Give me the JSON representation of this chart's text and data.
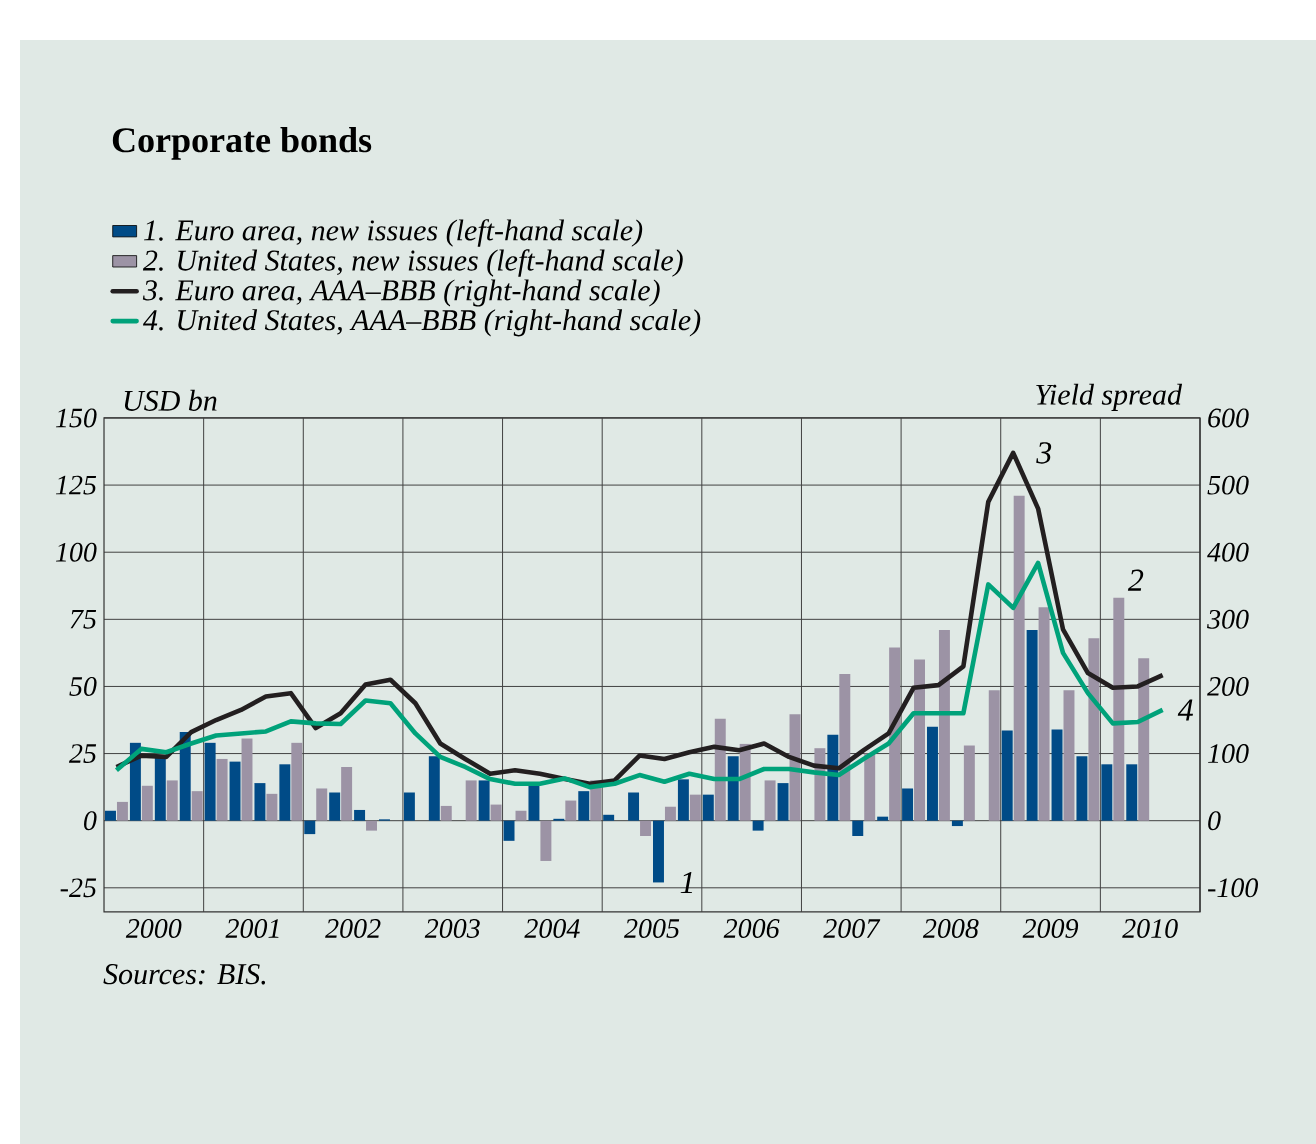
{
  "chart_data": {
    "type": "bar",
    "title": "Corporate bonds",
    "ylabel": "USD bn",
    "y2label": "Yield spread",
    "x": [
      2000.125,
      2000.375,
      2000.625,
      2000.875,
      2001.125,
      2001.375,
      2001.625,
      2001.875,
      2002.125,
      2002.375,
      2002.625,
      2002.875,
      2003.125,
      2003.375,
      2003.625,
      2003.875,
      2004.125,
      2004.375,
      2004.625,
      2004.875,
      2005.125,
      2005.375,
      2005.625,
      2005.875,
      2006.125,
      2006.375,
      2006.625,
      2006.875,
      2007.125,
      2007.375,
      2007.625,
      2007.875,
      2008.125,
      2008.375,
      2008.625,
      2008.875,
      2009.125,
      2009.375,
      2009.625,
      2009.875,
      2010.125,
      2010.375,
      2010.625
    ],
    "series": [
      {
        "name": "1. Euro area, new issues (left-hand scale)",
        "color": "#004b87",
        "values": [
          3.7,
          29,
          24,
          33,
          29,
          22,
          14,
          21,
          -5,
          10.5,
          4,
          0.5,
          10.5,
          24,
          0,
          15,
          -7.5,
          14,
          0.7,
          11,
          2.2,
          10.5,
          -23,
          15.4,
          9.7,
          24,
          -3.7,
          14,
          0,
          32,
          -5.7,
          1.5,
          12,
          35,
          -2,
          0,
          33.6,
          71,
          34,
          24,
          21,
          21,
          null
        ]
      },
      {
        "name": "2. United States, new issues (left-hand scale)",
        "color": "#9c93a5",
        "values": [
          7,
          13,
          15,
          11,
          23,
          30.6,
          10,
          29,
          12,
          20,
          -3.7,
          0,
          0,
          5.5,
          15,
          6,
          3.7,
          -15,
          7.5,
          15,
          0,
          -5.7,
          5.2,
          9.7,
          38,
          28.6,
          15,
          39.6,
          27,
          54.6,
          25,
          64.5,
          60,
          71,
          28,
          48.6,
          121,
          79.5,
          48.6,
          68,
          83,
          60.5,
          null
        ]
      },
      {
        "name": "3. Euro area, AAA–BBB (right-hand scale)",
        "color": "#231f20",
        "type": "line",
        "axis": "y2",
        "values": [
          80,
          97,
          95,
          132,
          150,
          165,
          185,
          190,
          138,
          160,
          203,
          210,
          175,
          115,
          92,
          70,
          75,
          70,
          62,
          55,
          60,
          97,
          92,
          102,
          110,
          105,
          115,
          95,
          82,
          78,
          105,
          130,
          198,
          202,
          230,
          475,
          548,
          465,
          285,
          220,
          198,
          200,
          217
        ]
      },
      {
        "name": "4. United States, AAA–BBB (right-hand scale)",
        "color": "#00a27a",
        "type": "line",
        "axis": "y2",
        "values": [
          75,
          107,
          102,
          115,
          127,
          130,
          133,
          148,
          145,
          144,
          179,
          175,
          130,
          95,
          80,
          62,
          55,
          55,
          63,
          50,
          55,
          68,
          58,
          70,
          62,
          62,
          77,
          77,
          72,
          68,
          92,
          115,
          160,
          160,
          160,
          352,
          317,
          384,
          250,
          190,
          145,
          147,
          165
        ]
      }
    ],
    "xlim": [
      2000,
      2011
    ],
    "xticks": [
      {
        "value": 2000.5,
        "label": "2000"
      },
      {
        "value": 2001.5,
        "label": "2001"
      },
      {
        "value": 2002.5,
        "label": "2002"
      },
      {
        "value": 2003.5,
        "label": "2003"
      },
      {
        "value": 2004.5,
        "label": "2004"
      },
      {
        "value": 2005.5,
        "label": "2005"
      },
      {
        "value": 2006.5,
        "label": "2006"
      },
      {
        "value": 2007.5,
        "label": "2007"
      },
      {
        "value": 2008.5,
        "label": "2008"
      },
      {
        "value": 2009.5,
        "label": "2009"
      },
      {
        "value": 2010.5,
        "label": "2010"
      },
      {
        "value": 2001,
        "label": null
      },
      {
        "value": 2002,
        "label": null
      },
      {
        "value": 2003,
        "label": null
      },
      {
        "value": 2004,
        "label": null
      },
      {
        "value": 2005,
        "label": null
      },
      {
        "value": 2006,
        "label": null
      },
      {
        "value": 2007,
        "label": null
      },
      {
        "value": 2008,
        "label": null
      },
      {
        "value": 2009,
        "label": null
      },
      {
        "value": 2010,
        "label": null
      }
    ],
    "ylim": [
      -34,
      150
    ],
    "yticks": [
      -25,
      0,
      25,
      50,
      75,
      100,
      125,
      150
    ],
    "y2lim": [
      -136,
      600
    ],
    "y2ticks": [
      -100,
      0,
      100,
      200,
      300,
      400,
      500,
      600
    ],
    "grid": true,
    "legend": "top",
    "marker": "none",
    "line_style": "solid",
    "annotations": [
      "1",
      "2",
      "3",
      "4",
      "Sources: BIS."
    ]
  }
}
